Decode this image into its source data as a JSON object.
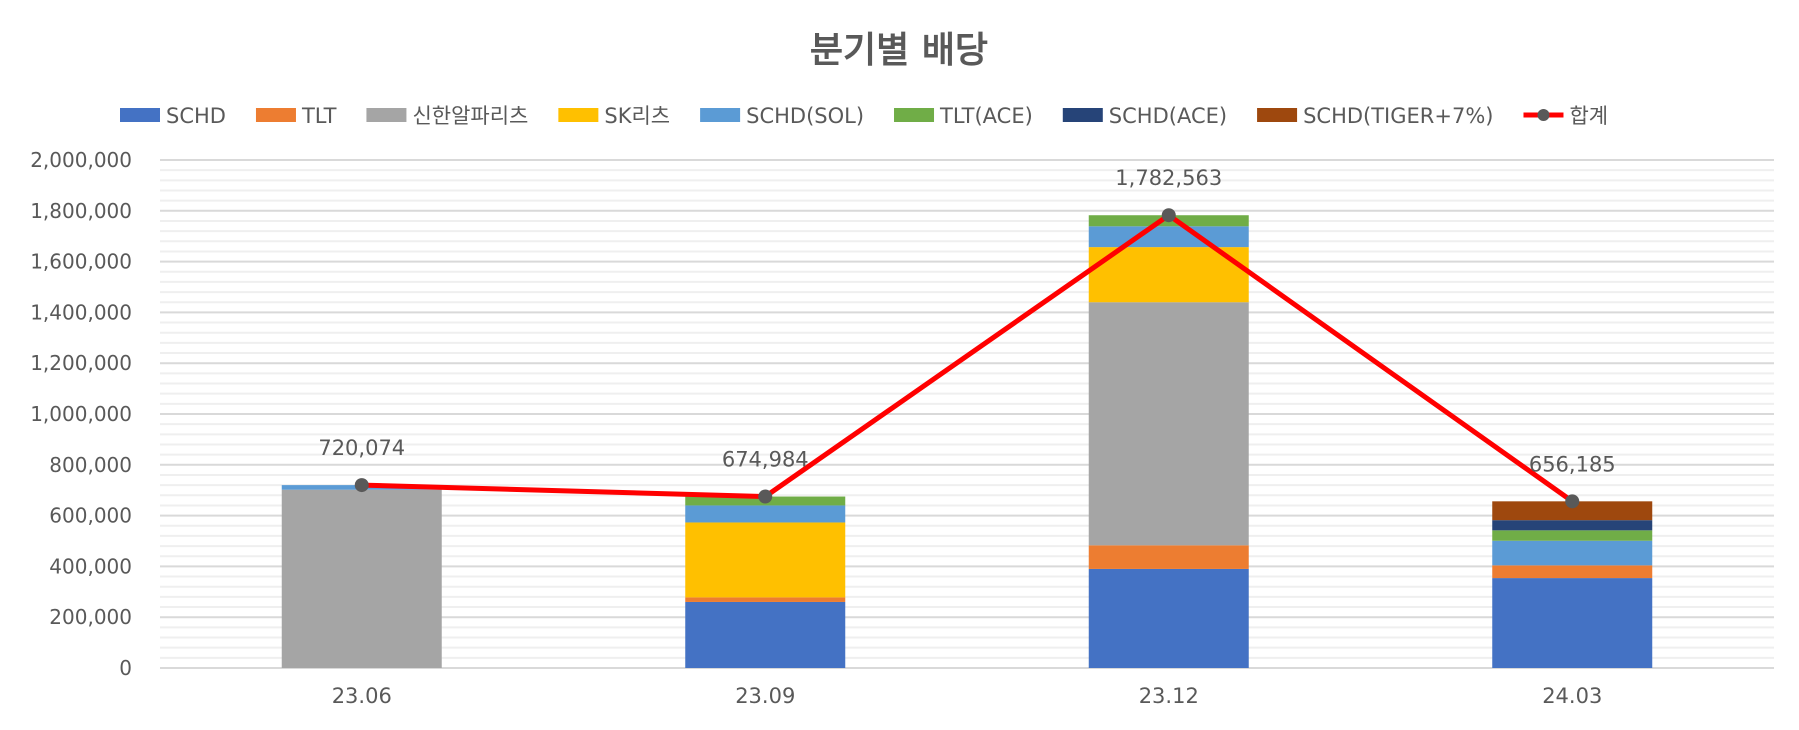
{
  "chart_data": {
    "type": "bar",
    "stacked": true,
    "title": "분기별 배당",
    "categories": [
      "23.06",
      "23.09",
      "23.12",
      "24.03"
    ],
    "ylim": [
      0,
      2000000
    ],
    "yticks": [
      "0",
      "200,000",
      "400,000",
      "600,000",
      "800,000",
      "1,000,000",
      "1,200,000",
      "1,400,000",
      "1,600,000",
      "1,800,000",
      "2,000,000"
    ],
    "grid": true,
    "legend_position": "top",
    "series": [
      {
        "name": "SCHD",
        "color": "#4472C4",
        "values": [
          0,
          260000,
          390000,
          354000
        ]
      },
      {
        "name": "TLT",
        "color": "#ED7D31",
        "values": [
          0,
          18000,
          93000,
          50000
        ]
      },
      {
        "name": "신한알파리츠",
        "color": "#A5A5A5",
        "values": [
          702000,
          0,
          957000,
          0
        ]
      },
      {
        "name": "SK리츠",
        "color": "#FFC000",
        "values": [
          0,
          295000,
          217000,
          0
        ]
      },
      {
        "name": "SCHD(SOL)",
        "color": "#5B9BD5",
        "values": [
          18074,
          67000,
          82000,
          97000
        ]
      },
      {
        "name": "TLT(ACE)",
        "color": "#70AD47",
        "values": [
          0,
          34984,
          43563,
          41000
        ]
      },
      {
        "name": "SCHD(ACE)",
        "color": "#264478",
        "values": [
          0,
          0,
          0,
          40000
        ]
      },
      {
        "name": "SCHD(TIGER+7%)",
        "color": "#9E480E",
        "values": [
          0,
          0,
          0,
          74185
        ]
      }
    ],
    "line": {
      "name": "합계",
      "type": "line",
      "color": "#FF0000",
      "marker_color": "#595959",
      "values": [
        720074,
        674984,
        1782563,
        656185
      ],
      "labels": [
        "720,074",
        "674,984",
        "1,782,563",
        "656,185"
      ]
    }
  }
}
